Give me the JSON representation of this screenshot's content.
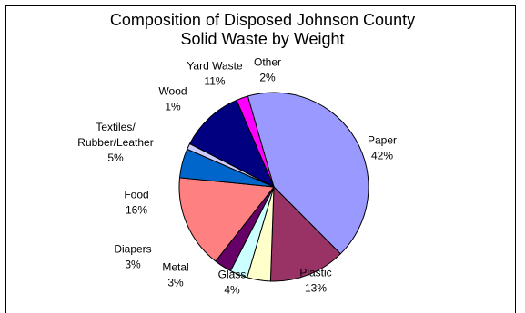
{
  "chart_data": {
    "type": "pie",
    "title_lines": [
      "Composition of Disposed Johnson County",
      "Solid Waste by Weight"
    ],
    "slices": [
      {
        "name": "Paper",
        "label": "Paper",
        "value": 42,
        "value_label": "42%",
        "color": "#9999ff"
      },
      {
        "name": "Plastic",
        "label": "Plastic",
        "value": 13,
        "value_label": "13%",
        "color": "#993366"
      },
      {
        "name": "Glass",
        "label": "Glass",
        "value": 4,
        "value_label": "4%",
        "color": "#ffffcc"
      },
      {
        "name": "Metal",
        "label": "Metal",
        "value": 3,
        "value_label": "3%",
        "color": "#ccffff"
      },
      {
        "name": "Diapers",
        "label": "Diapers",
        "value": 3,
        "value_label": "3%",
        "color": "#660066"
      },
      {
        "name": "Food",
        "label": "Food",
        "value": 16,
        "value_label": "16%",
        "color": "#ff8080"
      },
      {
        "name": "Textiles/Rubber/Leather",
        "label": "Textiles/\nRubber/Leather",
        "value": 5,
        "value_label": "5%",
        "color": "#0066cc"
      },
      {
        "name": "Wood",
        "label": "Wood",
        "value": 1,
        "value_label": "1%",
        "color": "#ccccff"
      },
      {
        "name": "Yard Waste",
        "label": "Yard Waste",
        "value": 11,
        "value_label": "11%",
        "color": "#000080"
      },
      {
        "name": "Other",
        "label": "Other",
        "value": 2,
        "value_label": "2%",
        "color": "#ff00ff"
      }
    ]
  }
}
